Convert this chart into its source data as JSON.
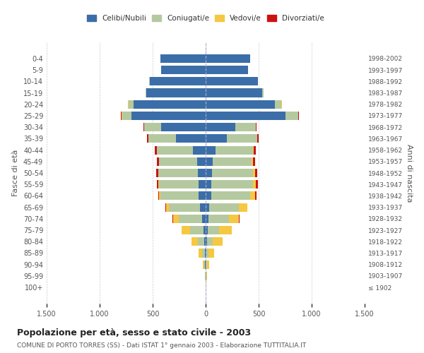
{
  "age_groups": [
    "100+",
    "95-99",
    "90-94",
    "85-89",
    "80-84",
    "75-79",
    "70-74",
    "65-69",
    "60-64",
    "55-59",
    "50-54",
    "45-49",
    "40-44",
    "35-39",
    "30-34",
    "25-29",
    "20-24",
    "15-19",
    "10-14",
    "5-9",
    "0-4"
  ],
  "birth_years": [
    "≤ 1902",
    "1903-1907",
    "1908-1912",
    "1913-1917",
    "1918-1922",
    "1923-1927",
    "1928-1932",
    "1933-1937",
    "1938-1942",
    "1943-1947",
    "1948-1952",
    "1953-1957",
    "1958-1962",
    "1963-1967",
    "1968-1972",
    "1973-1977",
    "1978-1982",
    "1983-1987",
    "1988-1992",
    "1993-1997",
    "1998-2002"
  ],
  "colors": {
    "celibi": "#3b6ea8",
    "coniugati": "#b5c9a0",
    "vedovi": "#f5c842",
    "divorziati": "#cc1111"
  },
  "males": {
    "celibi": [
      2,
      2,
      4,
      8,
      15,
      20,
      35,
      55,
      65,
      70,
      75,
      80,
      120,
      280,
      420,
      700,
      680,
      560,
      530,
      420,
      430
    ],
    "coniugati": [
      0,
      3,
      10,
      25,
      60,
      130,
      220,
      290,
      360,
      370,
      370,
      360,
      340,
      260,
      160,
      90,
      50,
      10,
      5,
      0,
      0
    ],
    "vedovi": [
      0,
      3,
      15,
      35,
      60,
      80,
      55,
      30,
      15,
      8,
      5,
      3,
      2,
      1,
      1,
      2,
      1,
      0,
      0,
      0,
      0
    ],
    "divorziati": [
      0,
      0,
      0,
      0,
      0,
      0,
      2,
      5,
      10,
      15,
      18,
      18,
      20,
      12,
      8,
      5,
      3,
      0,
      0,
      0,
      0
    ]
  },
  "females": {
    "celibi": [
      2,
      2,
      3,
      5,
      10,
      18,
      25,
      35,
      50,
      55,
      60,
      65,
      90,
      200,
      280,
      750,
      650,
      530,
      490,
      400,
      420
    ],
    "coniugati": [
      0,
      2,
      8,
      20,
      55,
      110,
      195,
      280,
      370,
      390,
      385,
      370,
      355,
      285,
      190,
      120,
      65,
      15,
      5,
      2,
      0
    ],
    "vedovi": [
      2,
      8,
      25,
      55,
      95,
      120,
      95,
      75,
      45,
      30,
      20,
      10,
      5,
      3,
      2,
      5,
      3,
      0,
      0,
      0,
      0
    ],
    "divorziati": [
      0,
      0,
      0,
      0,
      0,
      0,
      2,
      5,
      12,
      18,
      20,
      20,
      25,
      15,
      10,
      8,
      4,
      0,
      0,
      0,
      0
    ]
  },
  "title": "Popolazione per età, sesso e stato civile - 2003",
  "subtitle": "COMUNE DI PORTO TORRES (SS) - Dati ISTAT 1° gennaio 2003 - Elaborazione TUTTITALIA.IT",
  "ylabel_left": "Fasce di età",
  "ylabel_right": "Anni di nascita",
  "xlim": 1500,
  "legend_labels": [
    "Celibi/Nubili",
    "Coniugati/e",
    "Vedovi/e",
    "Divorziati/e"
  ],
  "bg_color": "#f5f5f5"
}
